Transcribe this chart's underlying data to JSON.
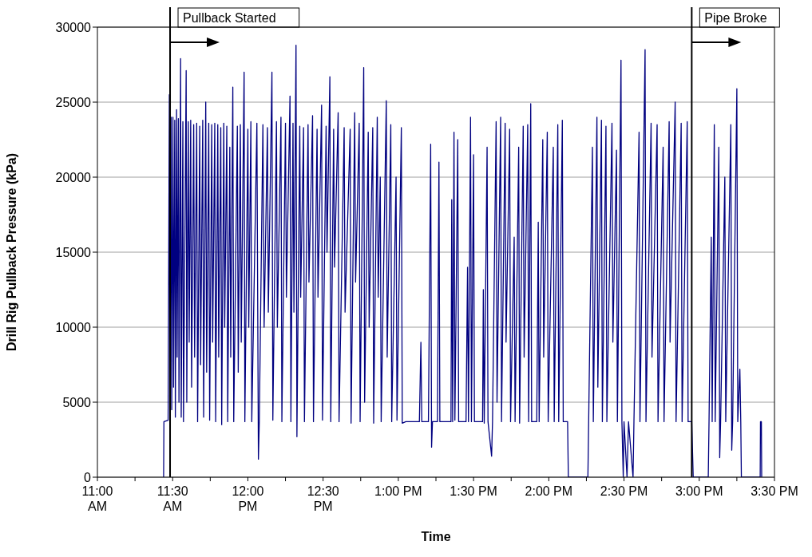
{
  "chart_data": {
    "type": "line",
    "xlabel": "Time",
    "ylabel": "Drill Rig Pullback Pressure (kPa)",
    "color": "#000080",
    "x": [
      11.44,
      11.442,
      11.47,
      11.478,
      11.482,
      11.49,
      11.494,
      11.502,
      11.506,
      11.514,
      11.518,
      11.526,
      11.53,
      11.538,
      11.542,
      11.553,
      11.557,
      11.568,
      11.572,
      11.59,
      11.594,
      11.604,
      11.61,
      11.62,
      11.626,
      11.64,
      11.646,
      11.66,
      11.666,
      11.68,
      11.686,
      11.7,
      11.706,
      11.72,
      11.726,
      11.74,
      11.746,
      11.76,
      11.766,
      11.78,
      11.786,
      11.8,
      11.806,
      11.82,
      11.826,
      11.84,
      11.846,
      11.86,
      11.866,
      11.88,
      11.886,
      11.9,
      11.906,
      11.93,
      11.936,
      11.95,
      11.956,
      11.975,
      11.98,
      12.0,
      12.006,
      12.02,
      12.026,
      12.06,
      12.07,
      12.076,
      12.1,
      12.108,
      12.13,
      12.136,
      12.16,
      12.166,
      12.19,
      12.196,
      12.22,
      12.226,
      12.25,
      12.256,
      12.28,
      12.286,
      12.3,
      12.306,
      12.32,
      12.326,
      12.345,
      12.351,
      12.37,
      12.376,
      12.4,
      12.406,
      12.43,
      12.436,
      12.46,
      12.466,
      12.49,
      12.496,
      12.52,
      12.526,
      12.545,
      12.551,
      12.57,
      12.576,
      12.6,
      12.606,
      12.64,
      12.646,
      12.68,
      12.686,
      12.71,
      12.716,
      12.74,
      12.746,
      12.77,
      12.776,
      12.8,
      12.806,
      12.83,
      12.836,
      12.86,
      12.866,
      12.88,
      12.886,
      12.92,
      12.926,
      12.95,
      12.956,
      12.985,
      12.991,
      13.02,
      13.026,
      13.05,
      13.14,
      13.15,
      13.156,
      13.2,
      13.215,
      13.221,
      13.227,
      13.26,
      13.27,
      13.276,
      13.35,
      13.355,
      13.361,
      13.37,
      13.376,
      13.395,
      13.401,
      13.45,
      13.46,
      13.466,
      13.48,
      13.486,
      13.5,
      13.506,
      13.56,
      13.565,
      13.571,
      13.59,
      13.596,
      13.62,
      13.626,
      13.65,
      13.656,
      13.68,
      13.686,
      13.71,
      13.716,
      13.74,
      13.746,
      13.77,
      13.776,
      13.8,
      13.806,
      13.83,
      13.836,
      13.86,
      13.866,
      13.88,
      13.886,
      13.92,
      13.93,
      13.936,
      13.96,
      13.966,
      13.99,
      13.996,
      14.03,
      14.036,
      14.06,
      14.066,
      14.09,
      14.096,
      14.125,
      14.13,
      14.26,
      14.265,
      14.29,
      14.296,
      14.32,
      14.326,
      14.35,
      14.356,
      14.38,
      14.386,
      14.42,
      14.426,
      14.45,
      14.456,
      14.48,
      14.486,
      14.495,
      14.5,
      14.52,
      14.53,
      14.56,
      14.566,
      14.6,
      14.606,
      14.64,
      14.646,
      14.68,
      14.686,
      14.72,
      14.726,
      14.76,
      14.766,
      14.8,
      14.806,
      14.84,
      14.846,
      14.88,
      14.886,
      14.92,
      14.926,
      14.95,
      14.96,
      15.06,
      15.065,
      15.08,
      15.086,
      15.1,
      15.106,
      15.13,
      15.136,
      15.142,
      15.17,
      15.176,
      15.21,
      15.216,
      15.222,
      15.25,
      15.256,
      15.27,
      15.276,
      15.28,
      15.405,
      15.407,
      15.413,
      15.415
    ],
    "values": [
      0,
      3700,
      3800,
      25500,
      3700,
      24000,
      4500,
      24000,
      6000,
      23800,
      4000,
      24500,
      8000,
      23900,
      5000,
      27900,
      4000,
      23700,
      3700,
      27100,
      5000,
      23700,
      9000,
      23800,
      6000,
      23500,
      8000,
      23600,
      3700,
      23400,
      7500,
      23800,
      4000,
      25000,
      7000,
      23600,
      3800,
      23500,
      9000,
      23600,
      3700,
      23500,
      8000,
      23300,
      3500,
      23600,
      10000,
      23400,
      3700,
      22000,
      8000,
      26000,
      3700,
      23400,
      7000,
      23500,
      9000,
      27000,
      3700,
      23200,
      10000,
      23700,
      3700,
      23600,
      1200,
      3700,
      23500,
      10000,
      23300,
      11000,
      27000,
      3800,
      23700,
      10000,
      24000,
      3700,
      23600,
      12000,
      25400,
      3700,
      23600,
      11000,
      28800,
      2700,
      23400,
      12000,
      23300,
      3700,
      23500,
      13000,
      24100,
      3700,
      23200,
      12000,
      24800,
      3800,
      23400,
      15000,
      26700,
      3700,
      23200,
      14000,
      24300,
      3700,
      23300,
      11000,
      23200,
      3600,
      24300,
      13000,
      23600,
      3700,
      27300,
      5000,
      23000,
      10000,
      23300,
      3600,
      24000,
      12000,
      20000,
      3700,
      25100,
      8000,
      23500,
      3700,
      20000,
      3800,
      23300,
      3600,
      3700,
      3700,
      9000,
      3700,
      3700,
      22200,
      2000,
      3700,
      3700,
      21000,
      3700,
      3700,
      18500,
      3700,
      23000,
      3800,
      22500,
      3700,
      3700,
      14000,
      3700,
      24000,
      3700,
      21500,
      3700,
      3700,
      12500,
      3600,
      22000,
      3700,
      1400,
      3700,
      23700,
      5000,
      24000,
      3700,
      23600,
      9000,
      23200,
      3700,
      16000,
      3700,
      22000,
      3600,
      23400,
      8000,
      23500,
      3700,
      24900,
      3700,
      3700,
      17000,
      3700,
      22500,
      8000,
      23000,
      3700,
      22000,
      3700,
      23500,
      3700,
      23800,
      3700,
      3700,
      0,
      0,
      3700,
      22000,
      3700,
      24000,
      6000,
      23800,
      3700,
      23400,
      3700,
      23600,
      9000,
      21800,
      3700,
      27800,
      3700,
      0,
      3700,
      0,
      3700,
      0,
      3700,
      23000,
      3700,
      28500,
      3700,
      23600,
      8000,
      23500,
      3700,
      22000,
      3700,
      23700,
      9000,
      25000,
      3700,
      23600,
      3700,
      23700,
      3700,
      3700,
      0,
      0,
      3700,
      16000,
      3700,
      23500,
      3700,
      22000,
      1300,
      3700,
      20000,
      3700,
      23500,
      1800,
      3700,
      25900,
      3700,
      7200,
      3700,
      0,
      0,
      3700,
      3700,
      0
    ],
    "xlim": [
      11,
      15.5
    ],
    "xticks": [
      {
        "value": 11,
        "label": "11:00 AM"
      },
      {
        "value": 11.25,
        "label": null
      },
      {
        "value": 11.5,
        "label": "11:30 AM"
      },
      {
        "value": 11.75,
        "label": null
      },
      {
        "value": 12,
        "label": "12:00 PM"
      },
      {
        "value": 12.25,
        "label": null
      },
      {
        "value": 12.5,
        "label": "12:30 PM"
      },
      {
        "value": 12.75,
        "label": null
      },
      {
        "value": 13,
        "label": "1:00 PM"
      },
      {
        "value": 13.25,
        "label": null
      },
      {
        "value": 13.5,
        "label": "1:30 PM"
      },
      {
        "value": 13.75,
        "label": null
      },
      {
        "value": 14,
        "label": "2:00 PM"
      },
      {
        "value": 14.25,
        "label": null
      },
      {
        "value": 14.5,
        "label": "2:30 PM"
      },
      {
        "value": 14.75,
        "label": null
      },
      {
        "value": 15,
        "label": "3:00 PM"
      },
      {
        "value": 15.25,
        "label": null
      },
      {
        "value": 15.5,
        "label": "3:30 PM"
      }
    ],
    "ylim": [
      0,
      30000
    ],
    "yticks": [
      0,
      5000,
      10000,
      15000,
      20000,
      25000,
      30000
    ],
    "grid": "y",
    "marker": "none",
    "line_style": "solid",
    "ref_lines": [
      {
        "axis": "x",
        "value": 11.483,
        "label": "Pullback Started",
        "color": "#000000"
      },
      {
        "axis": "x",
        "value": 14.95,
        "label": "Pipe Broke",
        "color": "#000000"
      }
    ]
  }
}
